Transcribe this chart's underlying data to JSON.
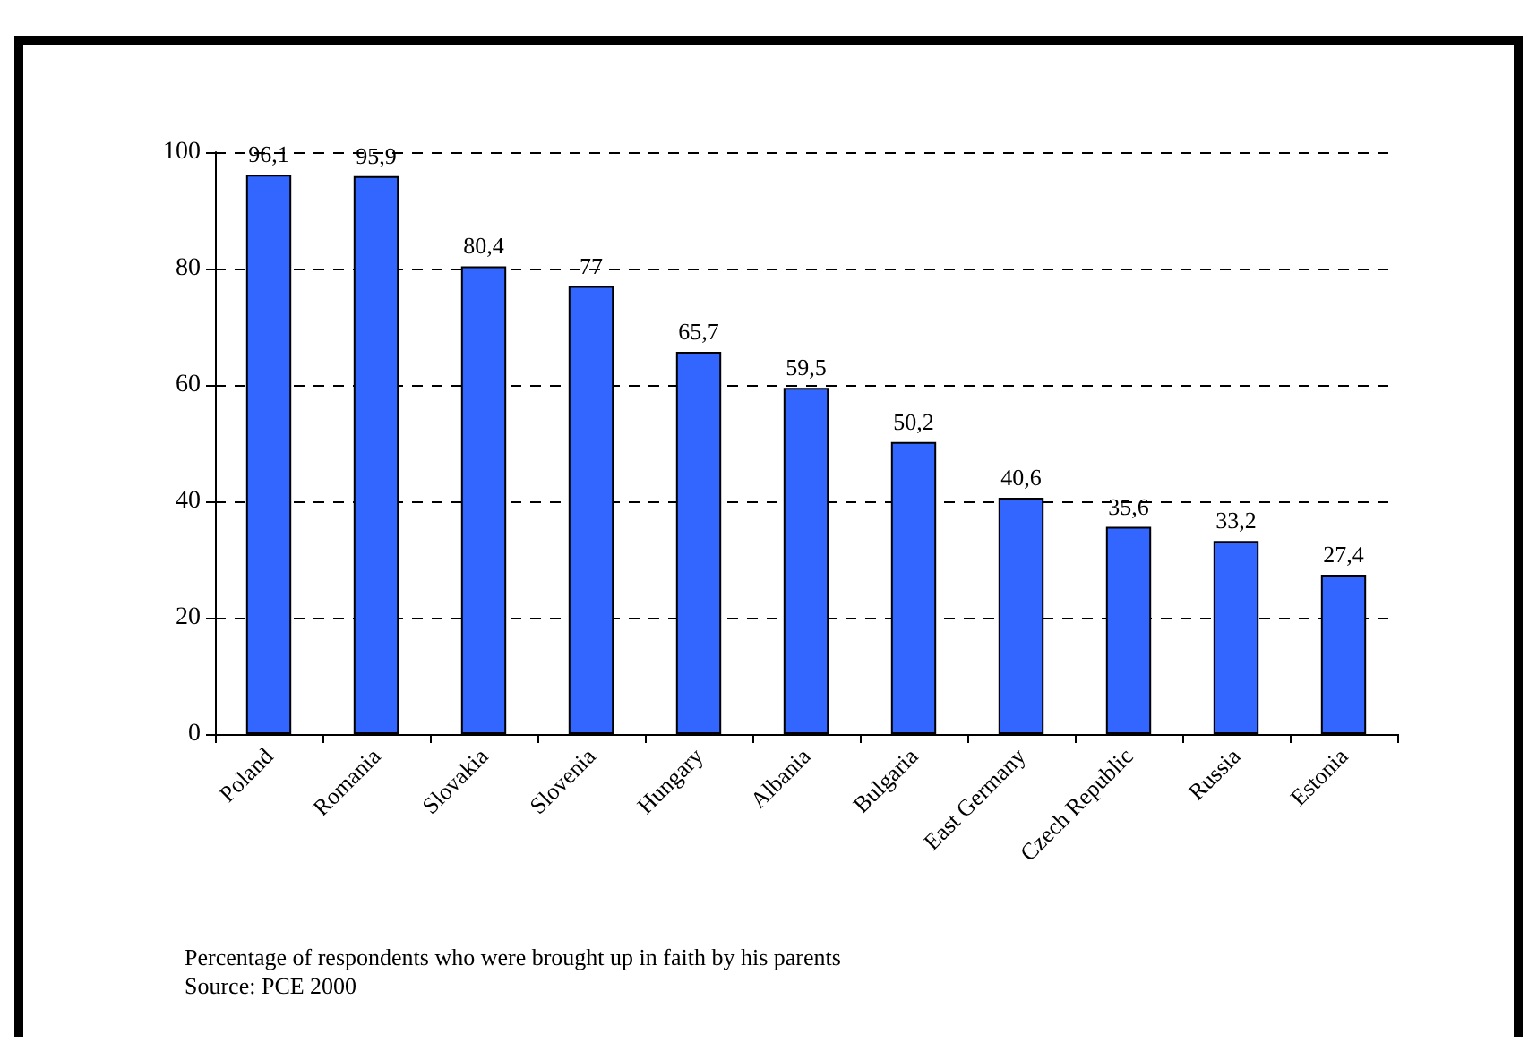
{
  "chart_data": {
    "type": "bar",
    "categories": [
      "Poland",
      "Romania",
      "Slovakia",
      "Slovenia",
      "Hungary",
      "Albania",
      "Bulgaria",
      "East Germany",
      "Czech Republic",
      "Russia",
      "Estonia"
    ],
    "values": [
      96.1,
      95.9,
      80.4,
      77,
      65.7,
      59.5,
      50.2,
      40.6,
      35.6,
      33.2,
      27.4
    ],
    "value_labels": [
      "96,1",
      "95,9",
      "80,4",
      "77",
      "65,7",
      "59,5",
      "50,2",
      "40,6",
      "35,6",
      "33,2",
      "27,4"
    ],
    "color": "#3366ff",
    "ylim": [
      0,
      100
    ],
    "yticks": [
      0,
      20,
      40,
      60,
      80,
      100
    ],
    "grid": "y",
    "annotations": [
      "Percentage of respondents who were brought up in faith by his parents",
      "Source: PCE 2000"
    ]
  }
}
